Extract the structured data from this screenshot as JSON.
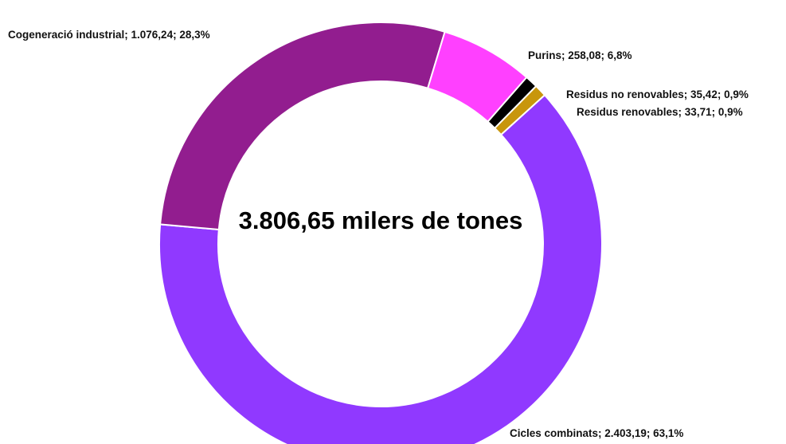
{
  "chart_data": {
    "type": "pie",
    "variant": "donut",
    "center_label": "3.806,65 milers de tones",
    "slices": [
      {
        "name": "Cogeneració industrial",
        "value": 1076.24,
        "percent": 28.3,
        "label": "Cogeneració industrial; 1.076,24; 28,3%",
        "color": "#921D8F"
      },
      {
        "name": "Purins",
        "value": 258.08,
        "percent": 6.8,
        "label": "Purins; 258,08; 6,8%",
        "color": "#FF40FF"
      },
      {
        "name": "Residus no renovables",
        "value": 35.42,
        "percent": 0.9,
        "label": "Residus no renovables; 35,42; 0,9%",
        "color": "#000000"
      },
      {
        "name": "Residus renovables",
        "value": 33.71,
        "percent": 0.9,
        "label": "Residus renovables; 33,71; 0,9%",
        "color": "#C8960C"
      },
      {
        "name": "Cicles combinats",
        "value": 2403.19,
        "percent": 63.1,
        "label": "Cicles combinats; 2.403,19; 63,1%",
        "color": "#9039FF"
      }
    ]
  }
}
